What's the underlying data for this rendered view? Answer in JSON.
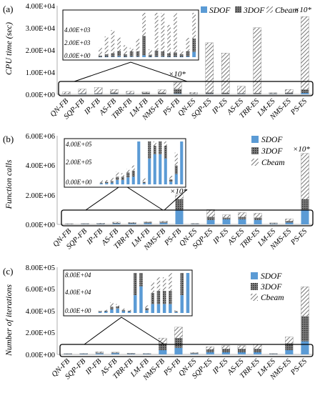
{
  "colors": {
    "sdof": "#5b9bd5",
    "dof3": "#404040",
    "cbeam": "#595959"
  },
  "categories": [
    "QN-FB",
    "SQP-FB",
    "IP-FB",
    "AS-FB",
    "TRR-FB",
    "LM-FB",
    "NMS-FB",
    "PS-FB",
    "QN-ES",
    "SQP-ES",
    "IP-ES",
    "AS-ES",
    "TRR-ES",
    "LM-ES",
    "NMS-ES",
    "PS-ES"
  ],
  "panels": [
    {
      "label": "(a)",
      "ylabel": "CPU time (sec)",
      "yticks": [
        "0.00E+00",
        "1.00E+04",
        "2.00E+04",
        "3.00E+04",
        "4.00E+04"
      ],
      "inset_ticks": [
        "0.00E+00",
        "2.00E+03",
        "4.00E+03"
      ],
      "legend": [
        "SDOF",
        "3DOF",
        "Cbeam"
      ],
      "notes": [
        {
          "text": "×10*",
          "series": 2,
          "category": 7
        },
        {
          "text": "×10*",
          "series": 2,
          "category": 15
        }
      ]
    },
    {
      "label": "(b)",
      "ylabel": "Function calls",
      "yticks": [
        "0.00E+00",
        "2.00E+06",
        "4.00E+06",
        "6.00E+06"
      ],
      "inset_ticks": [
        "0.00E+00",
        "2.00E+05",
        "4.00E+05"
      ],
      "legend": [
        "SDOF",
        "3DOF",
        "Cbeam"
      ],
      "notes": [
        {
          "text": "×10*",
          "series": 2,
          "category": 7
        },
        {
          "text": "×10*",
          "series": 2,
          "category": 15
        }
      ]
    },
    {
      "label": "(c)",
      "ylabel": "Number of iterations",
      "yticks": [
        "0.00E+00",
        "2.00E+05",
        "4.00E+05",
        "6.00E+05",
        "8.00E+05"
      ],
      "inset_ticks": [
        "0.00E+00",
        "4.00E+04",
        "8.00E+04"
      ],
      "legend": [
        "SDOF",
        "3DOF",
        "Cbeam"
      ],
      "notes": []
    }
  ],
  "chart_data": [
    {
      "type": "bar",
      "stacked": true,
      "title": "",
      "ylabel": "CPU time (sec)",
      "ylim": [
        0,
        40000
      ],
      "categories": [
        "QN-FB",
        "SQP-FB",
        "IP-FB",
        "AS-FB",
        "TRR-FB",
        "LM-FB",
        "NMS-FB",
        "PS-FB",
        "QN-ES",
        "SQP-ES",
        "IP-ES",
        "AS-ES",
        "TRR-ES",
        "LM-ES",
        "NMS-ES",
        "PS-ES"
      ],
      "series": [
        {
          "name": "SDOF",
          "values": [
            30,
            40,
            50,
            100,
            40,
            60,
            60,
            200,
            40,
            60,
            60,
            40,
            50,
            40,
            80,
            600
          ]
        },
        {
          "name": "3DOF",
          "values": [
            150,
            300,
            400,
            600,
            300,
            600,
            600,
            2200,
            250,
            700,
            600,
            400,
            500,
            300,
            600,
            1500
          ]
        },
        {
          "name": "Cbeam",
          "values": [
            900,
            2000,
            2600,
            1500,
            1000,
            400,
            1400,
            3000,
            600,
            22500,
            18000,
            3200,
            29500,
            400,
            1500,
            33000
          ]
        }
      ],
      "inset": {
        "ylim": [
          0,
          5000
        ],
        "range_categories": [
          0,
          15
        ]
      }
    },
    {
      "type": "bar",
      "stacked": true,
      "title": "",
      "ylabel": "Function calls",
      "ylim": [
        0,
        6000000
      ],
      "categories": [
        "QN-FB",
        "SQP-FB",
        "IP-FB",
        "AS-FB",
        "TRR-FB",
        "LM-FB",
        "NMS-FB",
        "PS-FB",
        "QN-ES",
        "SQP-ES",
        "IP-ES",
        "AS-ES",
        "TRR-ES",
        "LM-ES",
        "NMS-ES",
        "PS-ES"
      ],
      "series": [
        {
          "name": "SDOF",
          "values": [
            10000,
            15000,
            20000,
            50000,
            50000,
            80000,
            90000,
            1000000,
            15000,
            300000,
            350000,
            350000,
            300000,
            30000,
            120000,
            1000000
          ]
        },
        {
          "name": "3DOF",
          "values": [
            10000,
            15000,
            20000,
            40000,
            40000,
            60000,
            70000,
            700000,
            15000,
            200000,
            100000,
            150000,
            150000,
            30000,
            100000,
            700000
          ]
        },
        {
          "name": "Cbeam",
          "values": [
            30000,
            20000,
            40000,
            60000,
            40000,
            40000,
            60000,
            300000,
            40000,
            500000,
            200000,
            300000,
            300000,
            40000,
            150000,
            3100000
          ]
        }
      ],
      "inset": {
        "ylim": [
          0,
          500000
        ],
        "range_categories": [
          0,
          15
        ]
      }
    },
    {
      "type": "bar",
      "stacked": true,
      "title": "",
      "ylabel": "Number of iterations",
      "ylim": [
        0,
        800000
      ],
      "categories": [
        "QN-FB",
        "SQP-FB",
        "IP-FB",
        "AS-FB",
        "TRR-FB",
        "LM-FB",
        "NMS-FB",
        "PS-FB",
        "QN-ES",
        "SQP-ES",
        "IP-ES",
        "AS-ES",
        "TRR-ES",
        "LM-ES",
        "NMS-ES",
        "PS-ES"
      ],
      "series": [
        {
          "name": "SDOF",
          "values": [
            2000,
            3000,
            8000,
            10000,
            4000,
            3000,
            40000,
            60000,
            6000,
            20000,
            20000,
            20000,
            20000,
            2000,
            40000,
            120000
          ]
        },
        {
          "name": "3DOF",
          "values": [
            2000,
            2000,
            6000,
            5000,
            3000,
            2000,
            60000,
            90000,
            5000,
            25000,
            30000,
            30000,
            30000,
            2000,
            60000,
            230000
          ]
        },
        {
          "name": "Cbeam",
          "values": [
            2000,
            2000,
            10000,
            5000,
            3000,
            3000,
            50000,
            100000,
            6000,
            25000,
            30000,
            30000,
            40000,
            2000,
            60000,
            270000
          ]
        }
      ],
      "inset": {
        "ylim": [
          0,
          90000
        ],
        "range_categories": [
          0,
          15
        ]
      }
    }
  ]
}
